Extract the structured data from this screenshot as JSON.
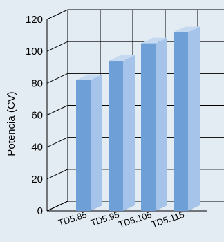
{
  "chart_data": {
    "type": "bar",
    "categories": [
      "TD5.85",
      "TD5.95",
      "TD5.105",
      "TD5.115"
    ],
    "values": [
      82,
      94,
      105,
      112
    ],
    "xlabel": "",
    "ylabel": "Potencia (CV)",
    "ylim": [
      0,
      120
    ],
    "yticks": [
      0,
      20,
      40,
      60,
      80,
      100,
      120
    ],
    "grid": true,
    "legend": "none",
    "three_d": true
  },
  "colors": {
    "background": "#e4ecf3",
    "bar_front": "#6e9fd6",
    "bar_side": "#a6c4e9",
    "bar_top": "#c5d9f1",
    "grid": "#000000"
  }
}
